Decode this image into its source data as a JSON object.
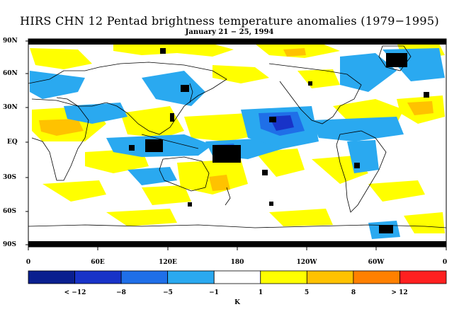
{
  "title": "HIRS CHN 12 Pentad brightness temperature anomalies (1979−1995)",
  "subtitle": "January 21 − 25, 1994",
  "lat_labels": [
    "90N",
    "60N",
    "30N",
    "EQ",
    "30S",
    "60S",
    "90S"
  ],
  "lon_labels": [
    "0",
    "60E",
    "120E",
    "180",
    "120W",
    "60W",
    "0"
  ],
  "colorbar": {
    "unit": "K",
    "labels": [
      "< −12",
      "−8",
      "−5",
      "−1",
      "1",
      "5",
      "8",
      "> 12"
    ],
    "colors": [
      "#0a1f8f",
      "#1833c8",
      "#1f6fe8",
      "#2aa9f0",
      "#ffffff",
      "#ffff00",
      "#ffc200",
      "#ff8000",
      "#ff2020"
    ]
  },
  "colors": {
    "land_outline": "#000000",
    "missing_data": "#000000",
    "frame": "#000000"
  }
}
